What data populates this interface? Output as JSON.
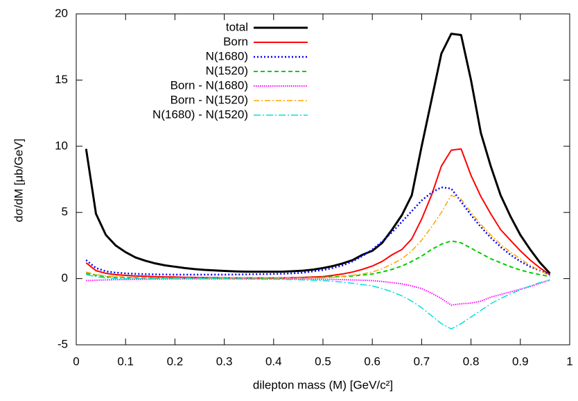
{
  "chart_data": {
    "type": "line",
    "xlabel": "dilepton mass (M)  [GeV/c²]",
    "ylabel": "dσ/dM  [μb/GeV]",
    "x": [
      0.02,
      0.04,
      0.06,
      0.08,
      0.1,
      0.12,
      0.14,
      0.16,
      0.18,
      0.2,
      0.22,
      0.24,
      0.26,
      0.28,
      0.3,
      0.32,
      0.34,
      0.36,
      0.38,
      0.4,
      0.42,
      0.44,
      0.46,
      0.48,
      0.5,
      0.52,
      0.54,
      0.56,
      0.58,
      0.6,
      0.62,
      0.64,
      0.66,
      0.68,
      0.7,
      0.72,
      0.74,
      0.76,
      0.78,
      0.8,
      0.82,
      0.84,
      0.86,
      0.88,
      0.9,
      0.92,
      0.94,
      0.96
    ],
    "series": [
      {
        "name": "total",
        "color": "#000000",
        "values": [
          9.8,
          4.9,
          3.3,
          2.5,
          2.0,
          1.6,
          1.35,
          1.15,
          1.0,
          0.9,
          0.8,
          0.72,
          0.66,
          0.62,
          0.58,
          0.55,
          0.53,
          0.52,
          0.52,
          0.52,
          0.53,
          0.56,
          0.6,
          0.68,
          0.8,
          0.95,
          1.15,
          1.4,
          1.8,
          2.1,
          2.7,
          3.7,
          4.8,
          6.3,
          10,
          13.5,
          17,
          18.5,
          18.4,
          15,
          11,
          8.5,
          6.3,
          4.7,
          3.3,
          2.2,
          1.2,
          0.4
        ]
      },
      {
        "name": "Born",
        "color": "#ff0000",
        "values": [
          1.2,
          0.6,
          0.4,
          0.3,
          0.25,
          0.2,
          0.18,
          0.15,
          0.13,
          0.12,
          0.1,
          0.09,
          0.08,
          0.07,
          0.06,
          0.05,
          0.05,
          0.05,
          0.05,
          0.05,
          0.06,
          0.07,
          0.09,
          0.12,
          0.15,
          0.25,
          0.35,
          0.5,
          0.7,
          0.95,
          1.3,
          1.8,
          2.2,
          3.0,
          4.5,
          6.3,
          8.5,
          9.7,
          9.8,
          7.8,
          6.2,
          4.9,
          3.7,
          2.9,
          2.1,
          1.4,
          0.8,
          0.3
        ]
      },
      {
        "name": "N(1680)",
        "color": "#0000ff",
        "values": [
          1.4,
          0.8,
          0.55,
          0.45,
          0.4,
          0.36,
          0.34,
          0.32,
          0.31,
          0.3,
          0.3,
          0.3,
          0.3,
          0.3,
          0.3,
          0.31,
          0.32,
          0.33,
          0.34,
          0.35,
          0.37,
          0.4,
          0.45,
          0.55,
          0.65,
          0.8,
          1.0,
          1.3,
          1.7,
          2.2,
          2.8,
          3.5,
          4.3,
          5.1,
          5.9,
          6.5,
          6.9,
          6.8,
          5.8,
          4.8,
          3.9,
          3.1,
          2.4,
          1.8,
          1.3,
          0.9,
          0.6,
          0.3
        ]
      },
      {
        "name": "N(1520)",
        "color": "#00cc00",
        "values": [
          0.4,
          0.25,
          0.15,
          0.1,
          0.08,
          0.06,
          0.05,
          0.04,
          0.04,
          0.03,
          0.03,
          0.03,
          0.03,
          0.03,
          0.03,
          0.03,
          0.03,
          0.03,
          0.03,
          0.03,
          0.04,
          0.05,
          0.06,
          0.08,
          0.1,
          0.13,
          0.16,
          0.2,
          0.27,
          0.35,
          0.5,
          0.7,
          0.95,
          1.3,
          1.7,
          2.2,
          2.6,
          2.85,
          2.7,
          2.3,
          1.9,
          1.5,
          1.2,
          0.9,
          0.65,
          0.45,
          0.3,
          0.15
        ]
      },
      {
        "name": "Born - N(1680)",
        "color": "#ff00ff",
        "values": [
          -0.15,
          -0.12,
          -0.1,
          -0.08,
          -0.07,
          -0.06,
          -0.05,
          -0.04,
          -0.03,
          -0.03,
          -0.02,
          -0.02,
          -0.02,
          -0.02,
          -0.02,
          -0.02,
          -0.02,
          -0.02,
          -0.02,
          -0.02,
          -0.02,
          -0.03,
          -0.03,
          -0.04,
          -0.05,
          -0.06,
          -0.08,
          -0.1,
          -0.12,
          -0.15,
          -0.22,
          -0.3,
          -0.4,
          -0.55,
          -0.75,
          -1.1,
          -1.5,
          -2.0,
          -1.9,
          -1.85,
          -1.7,
          -1.4,
          -1.2,
          -1.0,
          -0.8,
          -0.6,
          -0.35,
          -0.1
        ]
      },
      {
        "name": "Born - N(1520)",
        "color": "#ffa500",
        "values": [
          0.5,
          0.3,
          0.2,
          0.15,
          0.12,
          0.1,
          0.08,
          0.07,
          0.06,
          0.05,
          0.05,
          0.05,
          0.05,
          0.05,
          0.05,
          0.05,
          0.05,
          0.05,
          0.05,
          0.05,
          0.05,
          0.05,
          0.05,
          0.05,
          0.06,
          0.1,
          0.15,
          0.25,
          0.35,
          0.5,
          0.75,
          1.1,
          1.5,
          2.1,
          2.9,
          3.9,
          5.0,
          6.3,
          6.0,
          5.0,
          4.1,
          3.3,
          2.6,
          2.0,
          1.5,
          1.0,
          0.6,
          0.2
        ]
      },
      {
        "name": "N(1680) - N(1520)",
        "color": "#00e0e0",
        "values": [
          0.3,
          0.15,
          0.05,
          0.02,
          0,
          0,
          0,
          0,
          0,
          0,
          0,
          0,
          0,
          0,
          -0.01,
          -0.02,
          -0.03,
          -0.04,
          -0.05,
          -0.05,
          -0.06,
          -0.08,
          -0.1,
          -0.12,
          -0.15,
          -0.2,
          -0.27,
          -0.35,
          -0.45,
          -0.55,
          -0.75,
          -1.0,
          -1.3,
          -1.7,
          -2.2,
          -2.8,
          -3.4,
          -3.8,
          -3.4,
          -2.9,
          -2.4,
          -1.9,
          -1.5,
          -1.15,
          -0.85,
          -0.55,
          -0.3,
          -0.1
        ]
      }
    ],
    "xlim": [
      0,
      1
    ],
    "xticks": [
      0,
      0.1,
      0.2,
      0.3,
      0.4,
      0.5,
      0.6,
      0.7,
      0.8,
      0.9,
      1
    ],
    "ylim": [
      -5,
      20
    ],
    "yticks": [
      -5,
      0,
      5,
      10,
      15,
      20
    ],
    "legend": "upper left"
  }
}
